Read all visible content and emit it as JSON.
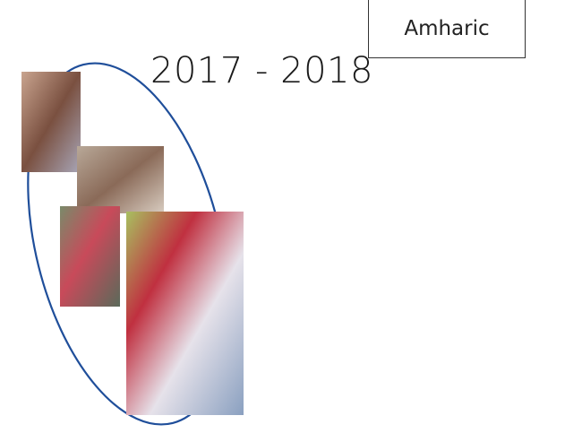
{
  "label_box": {
    "text": "Amharic"
  },
  "title": "2017 - 2018"
}
